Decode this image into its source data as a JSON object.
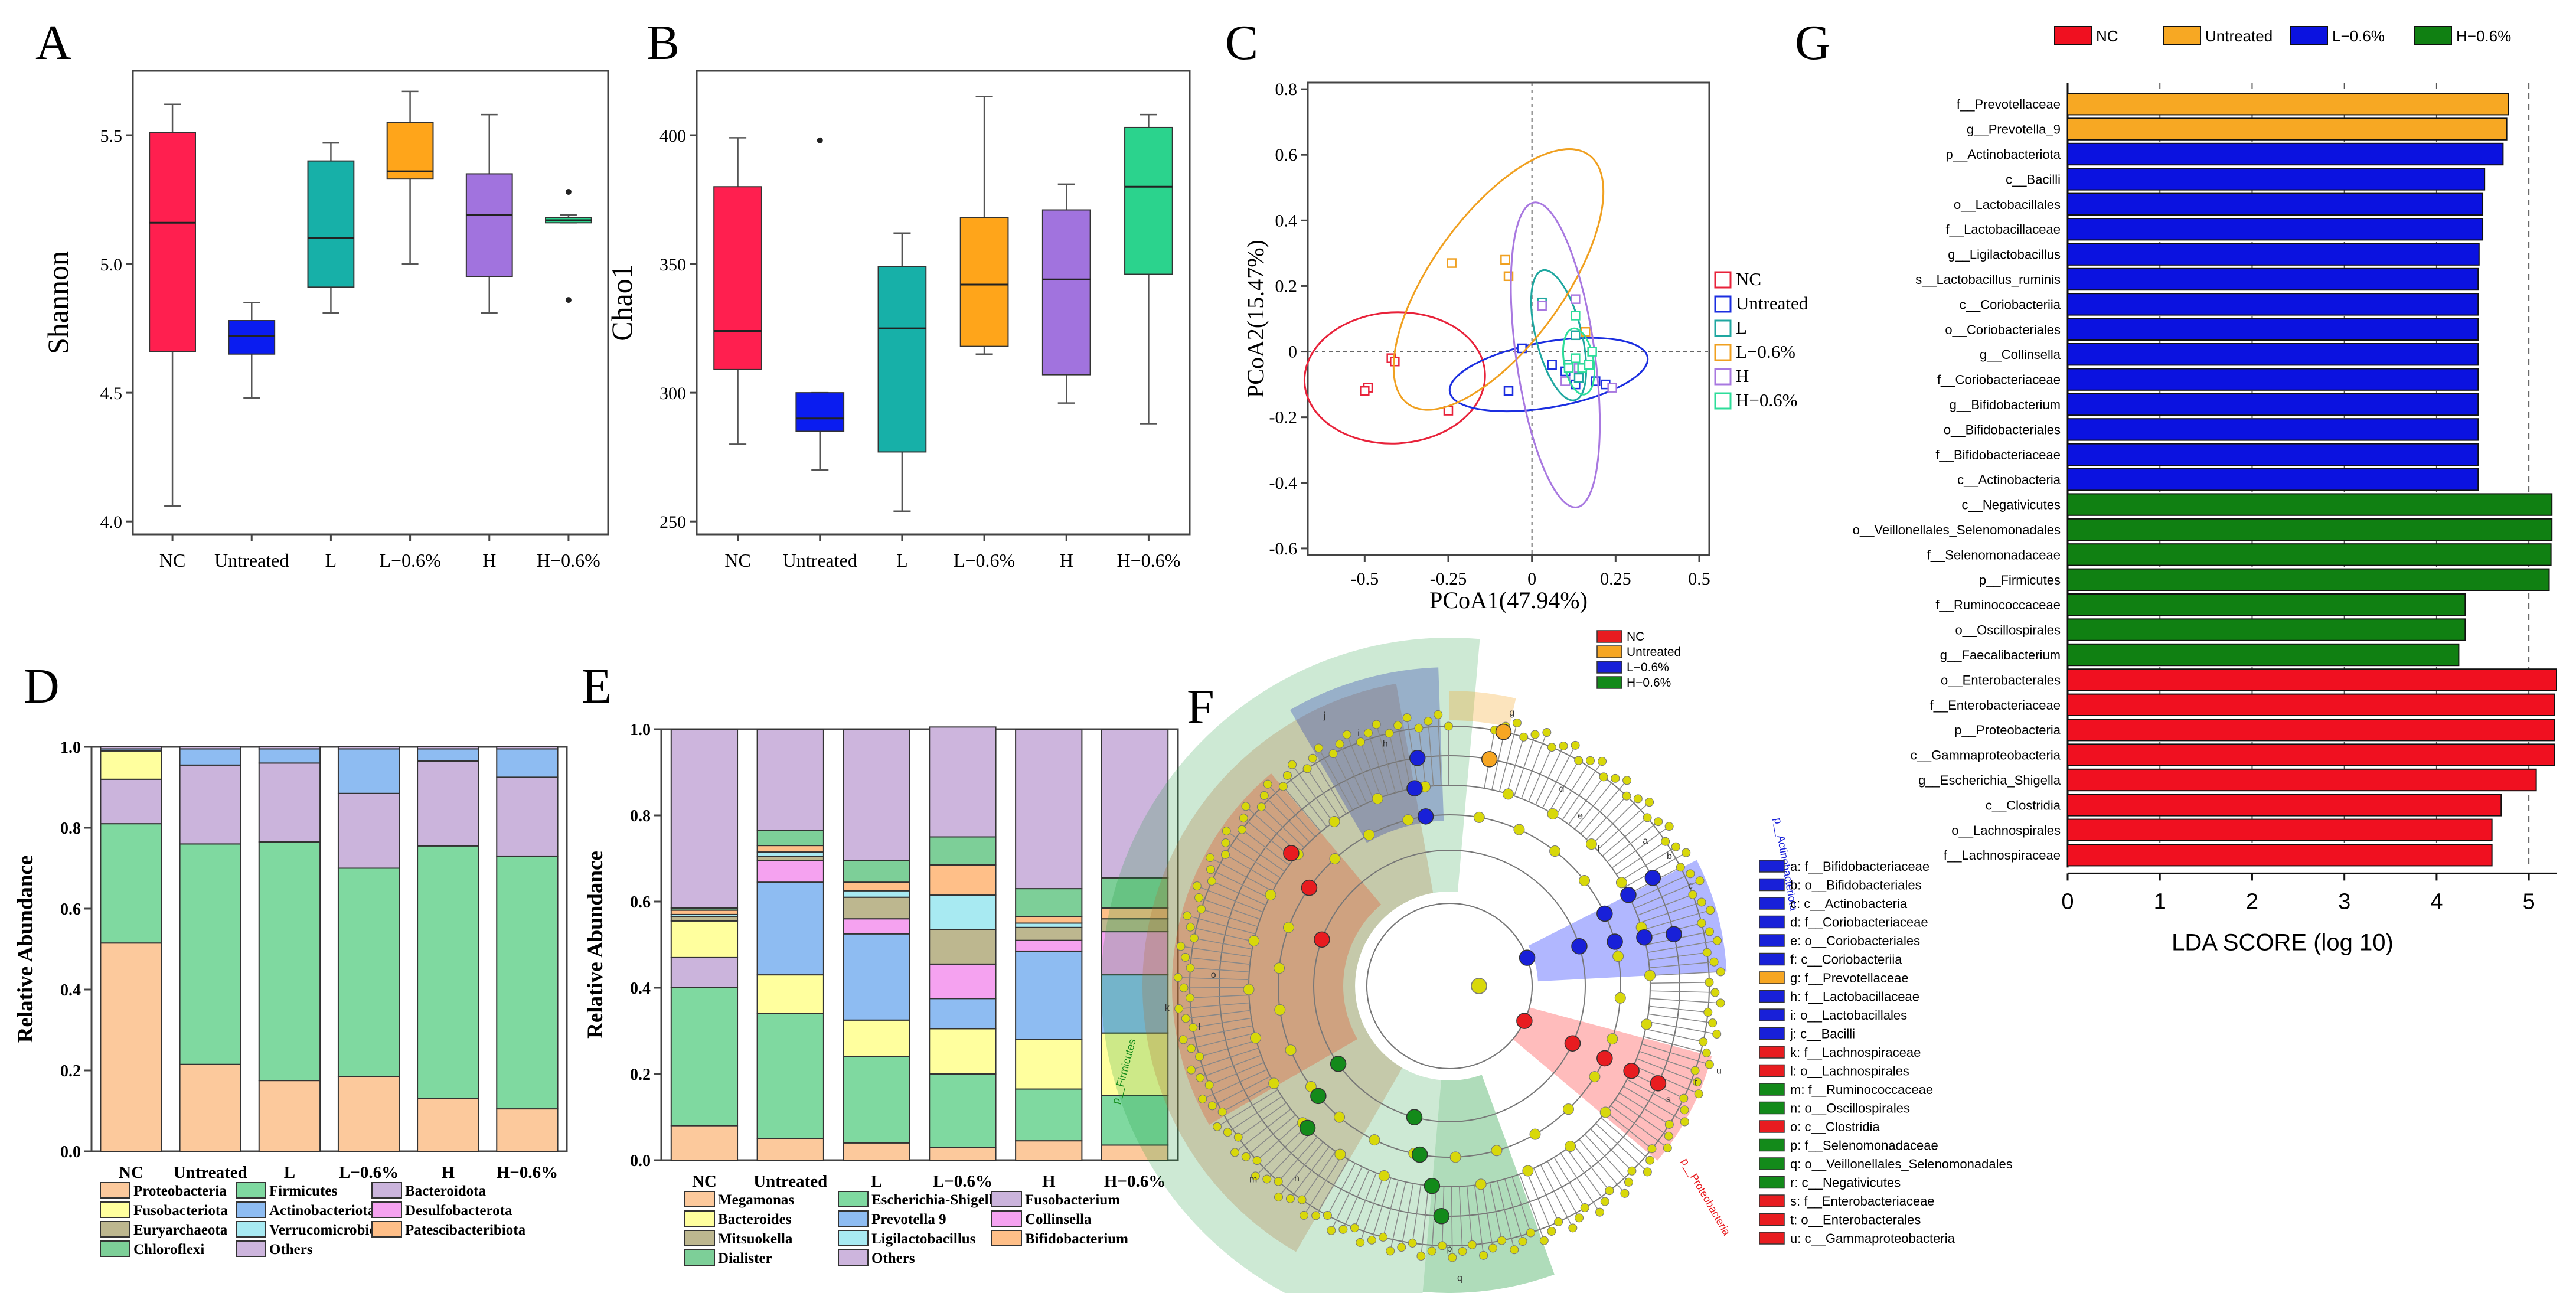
{
  "chart_data": [
    {
      "id": "A",
      "panel_letter": "A",
      "type": "box",
      "ylabel": "Shannon",
      "ylim": [
        3.95,
        5.75
      ],
      "yticks": [
        "4.0",
        "4.5",
        "5.0",
        "5.5"
      ],
      "categories": [
        "NC",
        "Untreated",
        "L",
        "L−0.6%",
        "H",
        "H−0.6%"
      ],
      "colors": [
        "#ff1f4f",
        "#0a1cf0",
        "#17b0a8",
        "#ffa51a",
        "#a173de",
        "#2bd38d"
      ],
      "boxes": [
        {
          "min": 4.06,
          "q1": 4.66,
          "median": 5.16,
          "q3": 5.51,
          "max": 5.62
        },
        {
          "min": 4.48,
          "q1": 4.65,
          "median": 4.72,
          "q3": 4.78,
          "max": 4.85
        },
        {
          "min": 4.81,
          "q1": 4.91,
          "median": 5.1,
          "q3": 5.4,
          "max": 5.47
        },
        {
          "min": 5.0,
          "q1": 5.33,
          "median": 5.36,
          "q3": 5.55,
          "max": 5.67
        },
        {
          "min": 4.81,
          "q1": 4.95,
          "median": 5.19,
          "q3": 5.35,
          "max": 5.58
        },
        {
          "min": 5.16,
          "q1": 5.16,
          "median": 5.17,
          "q3": 5.18,
          "max": 5.19
        }
      ],
      "outliers": [
        {
          "group": 5,
          "value": 5.28
        },
        {
          "group": 5,
          "value": 4.86
        }
      ]
    },
    {
      "id": "B",
      "panel_letter": "B",
      "type": "box",
      "ylabel": "Chao1",
      "ylim": [
        245,
        425
      ],
      "yticks": [
        "250",
        "300",
        "350",
        "400"
      ],
      "categories": [
        "NC",
        "Untreated",
        "L",
        "L−0.6%",
        "H",
        "H−0.6%"
      ],
      "colors": [
        "#ff1f4f",
        "#0a1cf0",
        "#17b0a8",
        "#ffa51a",
        "#a173de",
        "#2bd38d"
      ],
      "boxes": [
        {
          "min": 280,
          "q1": 309,
          "median": 324,
          "q3": 380,
          "max": 399
        },
        {
          "min": 270,
          "q1": 285,
          "median": 290,
          "q3": 300,
          "max": 300
        },
        {
          "min": 254,
          "q1": 277,
          "median": 325,
          "q3": 349,
          "max": 362
        },
        {
          "min": 315,
          "q1": 318,
          "median": 342,
          "q3": 368,
          "max": 415
        },
        {
          "min": 296,
          "q1": 307,
          "median": 344,
          "q3": 371,
          "max": 381
        },
        {
          "min": 288,
          "q1": 346,
          "median": 380,
          "q3": 403,
          "max": 408
        }
      ],
      "outliers": [
        {
          "group": 1,
          "value": 398
        }
      ]
    },
    {
      "id": "C",
      "panel_letter": "C",
      "type": "scatter",
      "xlabel": "PCoA1(47.94%)",
      "ylabel": "PCoA2(15.47%)",
      "xlim": [
        -0.67,
        0.53
      ],
      "ylim": [
        -0.62,
        0.82
      ],
      "xticks": [
        -0.5,
        -0.25,
        0,
        0.25,
        0.5
      ],
      "xtick_labels": [
        "-0.5",
        "-0.25",
        "0",
        "0.25",
        "0.5"
      ],
      "yticks": [
        -0.6,
        -0.4,
        -0.2,
        0,
        0.2,
        0.4,
        0.6,
        0.8
      ],
      "ytick_labels": [
        "-0.6",
        "-0.4",
        "-0.2",
        "0",
        "0.2",
        "0.4",
        "0.6",
        "0.8"
      ],
      "series": [
        {
          "name": "NC",
          "color": "#e8223a",
          "points": [
            [
              -0.42,
              -0.02
            ],
            [
              -0.41,
              -0.03
            ],
            [
              -0.49,
              -0.11
            ],
            [
              -0.5,
              -0.12
            ],
            [
              -0.25,
              -0.18
            ]
          ],
          "ellipse": {
            "cx": -0.41,
            "cy": -0.08,
            "rx": 0.27,
            "ry": 0.2,
            "angle": -3
          }
        },
        {
          "name": "Untreated",
          "color": "#1b2ee0",
          "points": [
            [
              -0.07,
              -0.12
            ],
            [
              -0.03,
              0.01
            ],
            [
              0.06,
              -0.04
            ],
            [
              0.1,
              -0.06
            ],
            [
              0.13,
              -0.1
            ],
            [
              0.19,
              -0.09
            ],
            [
              0.22,
              -0.1
            ]
          ],
          "ellipse": {
            "cx": 0.05,
            "cy": -0.07,
            "rx": 0.3,
            "ry": 0.1,
            "angle": -10
          }
        },
        {
          "name": "L",
          "color": "#1fa7a0",
          "points": [
            [
              0.03,
              0.15
            ],
            [
              0.13,
              0.05
            ],
            [
              0.11,
              -0.04
            ],
            [
              0.14,
              -0.08
            ]
          ],
          "ellipse": {
            "cx": 0.08,
            "cy": 0.05,
            "rx": 0.2,
            "ry": 0.07,
            "angle": 76
          }
        },
        {
          "name": "L−0.6%",
          "color": "#f0a020",
          "points": [
            [
              -0.24,
              0.27
            ],
            [
              -0.08,
              0.28
            ],
            [
              -0.07,
              0.23
            ],
            [
              0.16,
              0.06
            ]
          ],
          "ellipse": {
            "cx": -0.1,
            "cy": 0.22,
            "rx": 0.46,
            "ry": 0.2,
            "angle": -54
          }
        },
        {
          "name": "H",
          "color": "#a878e0",
          "points": [
            [
              0.03,
              0.14
            ],
            [
              0.13,
              0.16
            ],
            [
              0.1,
              -0.09
            ],
            [
              0.14,
              -0.05
            ],
            [
              0.24,
              -0.11
            ]
          ],
          "ellipse": {
            "cx": 0.07,
            "cy": -0.01,
            "rx": 0.46,
            "ry": 0.12,
            "angle": 82
          }
        },
        {
          "name": "H−0.6%",
          "color": "#2ddd9a",
          "points": [
            [
              0.13,
              0.11
            ],
            [
              0.18,
              0.0
            ],
            [
              0.13,
              -0.02
            ],
            [
              0.15,
              -0.05
            ],
            [
              0.17,
              -0.04
            ],
            [
              0.11,
              -0.05
            ]
          ],
          "ellipse": {
            "cx": 0.14,
            "cy": -0.03,
            "rx": 0.1,
            "ry": 0.045,
            "angle": 80
          }
        }
      ]
    },
    {
      "id": "D",
      "panel_letter": "D",
      "type": "stacked-bar",
      "ylabel": "Relative Abundance",
      "yticks": [
        "0.0",
        "0.2",
        "0.4",
        "0.6",
        "0.8",
        "1.0"
      ],
      "categories": [
        "NC",
        "Untreated",
        "L",
        "L−0.6%",
        "H",
        "H−0.6%"
      ],
      "series": [
        {
          "name": "Proteobacteria",
          "color": "#fcc99c",
          "values": [
            0.515,
            0.215,
            0.175,
            0.185,
            0.13,
            0.105
          ]
        },
        {
          "name": "Firmicutes",
          "color": "#7fd9a0",
          "values": [
            0.295,
            0.545,
            0.59,
            0.515,
            0.625,
            0.625
          ]
        },
        {
          "name": "Bacteroidota",
          "color": "#cbb4dc",
          "values": [
            0.11,
            0.195,
            0.195,
            0.185,
            0.21,
            0.195
          ]
        },
        {
          "name": "Fusobacteriota",
          "color": "#ffff9e",
          "values": [
            0.07,
            0.0,
            0.0,
            0.0,
            0.0,
            0.0
          ]
        },
        {
          "name": "Actinobacteriota",
          "color": "#8ebcf2",
          "values": [
            0.005,
            0.04,
            0.035,
            0.11,
            0.03,
            0.07
          ]
        },
        {
          "name": "Desulfobacterota",
          "color": "#f5a2f0",
          "values": [
            0,
            0,
            0,
            0,
            0,
            0
          ]
        },
        {
          "name": "Euryarchaeota",
          "color": "#bdb78f",
          "values": [
            0,
            0,
            0,
            0,
            0,
            0
          ]
        },
        {
          "name": "Verrucomicrobiota",
          "color": "#a8eaf2",
          "values": [
            0,
            0,
            0,
            0,
            0,
            0
          ]
        },
        {
          "name": "Patescibacteribiota",
          "color": "#ffbf88",
          "values": [
            0,
            0,
            0,
            0,
            0,
            0
          ]
        },
        {
          "name": "Chloroflexi",
          "color": "#7dcf98",
          "values": [
            0,
            0,
            0,
            0,
            0,
            0
          ]
        },
        {
          "name": "Others",
          "color": "#cdb5dd",
          "values": [
            0.005,
            0.005,
            0.005,
            0.005,
            0.005,
            0.005
          ]
        }
      ]
    },
    {
      "id": "E",
      "panel_letter": "E",
      "type": "stacked-bar",
      "ylabel": "Relative Abundance",
      "yticks": [
        "0.0",
        "0.2",
        "0.4",
        "0.6",
        "0.8",
        "1.0"
      ],
      "categories": [
        "NC",
        "Untreated",
        "L",
        "L−0.6%",
        "H",
        "H−0.6%"
      ],
      "series": [
        {
          "name": "Megamonas",
          "color": "#fcc99c",
          "values": [
            0.08,
            0.05,
            0.04,
            0.03,
            0.045,
            0.035
          ]
        },
        {
          "name": "Escherichia-Shigella",
          "color": "#7fd9a0",
          "values": [
            0.32,
            0.29,
            0.2,
            0.17,
            0.12,
            0.115
          ]
        },
        {
          "name": "Fusobacterium",
          "color": "#cbb4dc",
          "values": [
            0.07,
            0.0,
            0.0,
            0.0,
            0.0,
            0.0
          ]
        },
        {
          "name": "Bacteroides",
          "color": "#ffff9e",
          "values": [
            0.085,
            0.09,
            0.085,
            0.105,
            0.115,
            0.145
          ]
        },
        {
          "name": "Prevotella 9",
          "color": "#8ebcf2",
          "values": [
            0.0,
            0.215,
            0.2,
            0.07,
            0.205,
            0.135
          ]
        },
        {
          "name": "Collinsella",
          "color": "#f5a2f0",
          "values": [
            0.0,
            0.05,
            0.035,
            0.08,
            0.025,
            0.1
          ]
        },
        {
          "name": "Mitsuokella",
          "color": "#bdb78f",
          "values": [
            0.01,
            0.01,
            0.05,
            0.08,
            0.03,
            0.03
          ]
        },
        {
          "name": "Ligilactobacillus",
          "color": "#a8eaf2",
          "values": [
            0.005,
            0.01,
            0.015,
            0.08,
            0.01,
            0.0
          ]
        },
        {
          "name": "Bifidobacterium",
          "color": "#ffbf88",
          "values": [
            0.01,
            0.015,
            0.02,
            0.07,
            0.015,
            0.025
          ]
        },
        {
          "name": "Dialister",
          "color": "#7dcf98",
          "values": [
            0.005,
            0.035,
            0.05,
            0.065,
            0.065,
            0.07
          ]
        },
        {
          "name": "Others",
          "color": "#cdb5dd",
          "values": [
            0.415,
            0.235,
            0.305,
            0.255,
            0.37,
            0.345
          ]
        }
      ]
    },
    {
      "id": "G",
      "panel_letter": "G",
      "type": "bar-horizontal",
      "xlabel": "LDA SCORE (log 10)",
      "xlim": [
        0,
        5.3
      ],
      "xticks": [
        "0",
        "1",
        "2",
        "3",
        "4",
        "5"
      ],
      "legend": [
        {
          "name": "NC",
          "color": "#f01020"
        },
        {
          "name": "Untreated",
          "color": "#f7a823"
        },
        {
          "name": "L−0.6%",
          "color": "#0b12e0"
        },
        {
          "name": "H−0.6%",
          "color": "#108012"
        }
      ],
      "categories": [
        "f__Prevotellaceae",
        "g__Prevotella_9",
        "p__Actinobacteriota",
        "c__Bacilli",
        "o__Lactobacillales",
        "f__Lactobacillaceae",
        "g__Ligilactobacillus",
        "s__Lactobacillus_ruminis",
        "c__Coriobacteriia",
        "o__Coriobacteriales",
        "g__Collinsella",
        "f__Coriobacteriaceae",
        "g__Bifidobacterium",
        "o__Bifidobacteriales",
        "f__Bifidobacteriaceae",
        "c__Actinobacteria",
        "c__Negativicutes",
        "o__Veillonellales_Selenomonadales",
        "f__Selenomonadaceae",
        "p__Firmicutes",
        "f__Ruminococcaceae",
        "o__Oscillospirales",
        "g__Faecalibacterium",
        "o__Enterobacterales",
        "f__Enterobacteriaceae",
        "p__Proteobacteria",
        "c__Gammaproteobacteria",
        "g__Escherichia_Shigella",
        "c__Clostridia",
        "o__Lachnospirales",
        "f__Lachnospiraceae"
      ],
      "values": [
        4.78,
        4.76,
        4.72,
        4.52,
        4.5,
        4.5,
        4.46,
        4.45,
        4.45,
        4.45,
        4.45,
        4.45,
        4.45,
        4.45,
        4.45,
        4.45,
        5.25,
        5.25,
        5.24,
        5.22,
        4.31,
        4.31,
        4.24,
        5.3,
        5.28,
        5.28,
        5.28,
        5.08,
        4.7,
        4.6,
        4.6
      ],
      "groups": [
        1,
        1,
        2,
        2,
        2,
        2,
        2,
        2,
        2,
        2,
        2,
        2,
        2,
        2,
        2,
        2,
        3,
        3,
        3,
        3,
        3,
        3,
        3,
        0,
        0,
        0,
        0,
        0,
        0,
        0,
        0
      ]
    }
  ],
  "cladogram": {
    "panel_letter": "F",
    "legend": [
      {
        "name": "NC",
        "color": "#e81c20"
      },
      {
        "name": "Untreated",
        "color": "#f6a623"
      },
      {
        "name": "L−0.6%",
        "color": "#1820d8"
      },
      {
        "name": "H−0.6%",
        "color": "#138a1a"
      }
    ],
    "key": [
      {
        "text": "a: f__Bifidobacteriaceae",
        "color": "#1820d8"
      },
      {
        "text": "b: o__Bifidobacteriales",
        "color": "#1820d8"
      },
      {
        "text": "c: c__Actinobacteria",
        "color": "#1820d8"
      },
      {
        "text": "d: f__Coriobacteriaceae",
        "color": "#1820d8"
      },
      {
        "text": "e: o__Coriobacteriales",
        "color": "#1820d8"
      },
      {
        "text": "f: c__Coriobacteriia",
        "color": "#1820d8"
      },
      {
        "text": "g: f__Prevotellaceae",
        "color": "#f6a623"
      },
      {
        "text": "h: f__Lactobacillaceae",
        "color": "#1820d8"
      },
      {
        "text": "i: o__Lactobacillales",
        "color": "#1820d8"
      },
      {
        "text": "j: c__Bacilli",
        "color": "#1820d8"
      },
      {
        "text": "k: f__Lachnospiraceae",
        "color": "#e81c20"
      },
      {
        "text": "l: o__Lachnospirales",
        "color": "#e81c20"
      },
      {
        "text": "m: f__Ruminococcaceae",
        "color": "#138a1a"
      },
      {
        "text": "n: o__Oscillospirales",
        "color": "#138a1a"
      },
      {
        "text": "o: c__Clostridia",
        "color": "#e81c20"
      },
      {
        "text": "p: f__Selenomonadaceae",
        "color": "#138a1a"
      },
      {
        "text": "q: o__Veillonellales_Selenomonadales",
        "color": "#138a1a"
      },
      {
        "text": "r: c__Negativicutes",
        "color": "#138a1a"
      },
      {
        "text": "s: f__Enterobacteriaceae",
        "color": "#e81c20"
      },
      {
        "text": "t: o__Enterobacterales",
        "color": "#e81c20"
      },
      {
        "text": "u: c__Gammaproteobacteria",
        "color": "#e81c20"
      }
    ],
    "sector_labels": [
      {
        "text": "p__Firmicutes",
        "color": "#138a1a"
      },
      {
        "text": "p__Actinobacteriota",
        "color": "#1820d8"
      },
      {
        "text": "p__Proteobacteria",
        "color": "#e81c20"
      }
    ],
    "ring_letters": [
      "k",
      "l",
      "o",
      "m",
      "n",
      "r",
      "q",
      "p",
      "j",
      "i",
      "h",
      "g",
      "c",
      "b",
      "a",
      "u",
      "t",
      "s",
      "d",
      "e",
      "f"
    ]
  }
}
